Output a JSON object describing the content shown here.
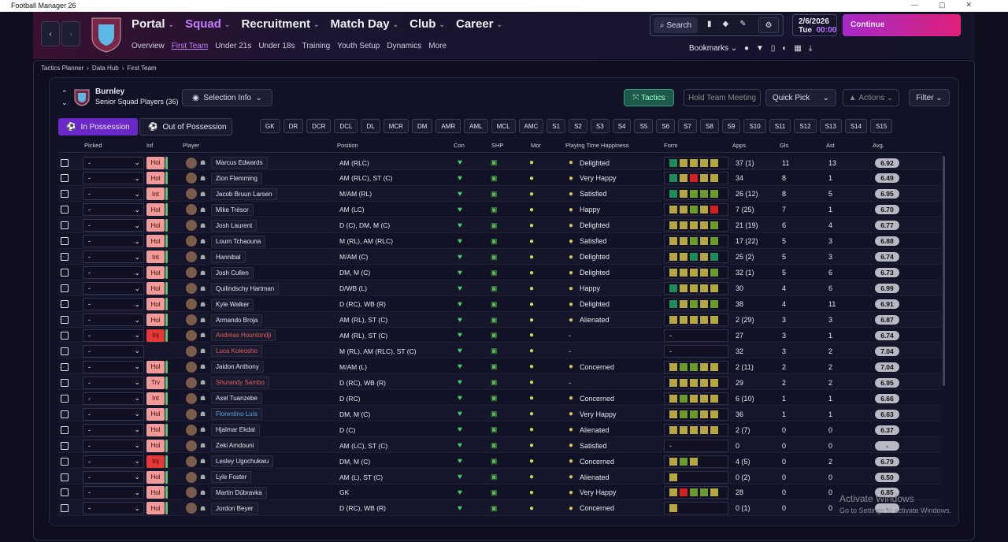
{
  "window": {
    "title": "Football Manager 26"
  },
  "nav": {
    "main": [
      "Portal",
      "Squad",
      "Recruitment",
      "Match Day",
      "Club",
      "Career"
    ],
    "sub": [
      "Overview",
      "First Team",
      "Under 21s",
      "Under 18s",
      "Training",
      "Youth Setup",
      "Dynamics",
      "More"
    ],
    "search": "Search",
    "date": "2/6/2026",
    "day": "Tue",
    "time": "00:00",
    "continue": "Continue",
    "bookmarks": "Bookmarks"
  },
  "breadcrumb": [
    "Tactics Planner",
    "Data Hub",
    "First Team"
  ],
  "squad": {
    "club": "Burnley",
    "subtitle": "Senior Squad Players (36)",
    "selection_info": "Selection Info",
    "tactics": "Tactics",
    "meeting": "Hold Team Meeting",
    "quick_pick": "Quick Pick",
    "actions": "Actions",
    "filter": "Filter",
    "tabs": [
      "In Possession",
      "Out of Possession"
    ],
    "positions": [
      "GK",
      "DR",
      "DCR",
      "DCL",
      "DL",
      "MCR",
      "DM",
      "AMR",
      "AML",
      "MCL",
      "AMC",
      "S1",
      "S2",
      "S3",
      "S4",
      "S5",
      "S6",
      "S7",
      "S8",
      "S9",
      "S10",
      "S11",
      "S12",
      "S13",
      "S14",
      "S15"
    ]
  },
  "table": {
    "columns": [
      "Picked",
      "Inf",
      "Player",
      "Position",
      "Con",
      "SHP",
      "Mor",
      "Playing Time Happiness",
      "Form",
      "Apps",
      "Gls",
      "Ast",
      "Avg."
    ],
    "rows": [
      {
        "picked": "-",
        "inf": "Hol",
        "name": "Marcus Edwards",
        "position": "AM (RLC)",
        "happiness": "Delighted",
        "form": [
          "#1f8a5a",
          "#b5a642",
          "#b5a642",
          "#b5a642",
          "#b5a642"
        ],
        "apps": "37 (1)",
        "gls": 11,
        "ast": 13,
        "avg": "6.92"
      },
      {
        "picked": "-",
        "inf": "Hol",
        "name": "Zion Flemming",
        "position": "AM (RLC), ST (C)",
        "happiness": "Very Happy",
        "form": [
          "#1f8a5a",
          "#b5a642",
          "#d42020",
          "#b5a642",
          "#b5a642"
        ],
        "apps": "34",
        "gls": 8,
        "ast": 1,
        "avg": "6.49"
      },
      {
        "picked": "-",
        "inf": "Int",
        "name": "Jacob Bruun Larsen",
        "position": "M/AM (RL)",
        "happiness": "Satisfied",
        "form": [
          "#1f8a5a",
          "#b5a642",
          "#6a9a2a",
          "#6a9a2a",
          "#6a9a2a"
        ],
        "apps": "26 (12)",
        "gls": 8,
        "ast": 5,
        "avg": "6.95"
      },
      {
        "picked": "-",
        "inf": "Hol",
        "name": "Mike Trésor",
        "position": "AM (LC)",
        "happiness": "Happy",
        "form": [
          "#b5a642",
          "#b5a642",
          "#6a9a2a",
          "#b5a642",
          "#d42020"
        ],
        "apps": "7 (25)",
        "gls": 7,
        "ast": 1,
        "avg": "6.70"
      },
      {
        "picked": "-",
        "inf": "Hol",
        "name": "Josh Laurent",
        "position": "D (C), DM, M (C)",
        "happiness": "Delighted",
        "form": [
          "#b5a642",
          "#b5a642",
          "#b5a642",
          "#b5a642",
          "#6a9a2a"
        ],
        "apps": "21 (19)",
        "gls": 6,
        "ast": 4,
        "avg": "6.77"
      },
      {
        "picked": "-",
        "inf": "Hol",
        "name": "Lourn Tchaouna",
        "position": "M (RL), AM (RLC)",
        "happiness": "Satisfied",
        "form": [
          "#b5a642",
          "#b5a642",
          "#6a9a2a",
          "#b5a642",
          "#6a9a2a"
        ],
        "apps": "17 (22)",
        "gls": 5,
        "ast": 3,
        "avg": "6.88"
      },
      {
        "picked": "-",
        "inf": "Int",
        "name": "Hannibal",
        "position": "M/AM (C)",
        "happiness": "Delighted",
        "form": [
          "#b5a642",
          "#b5a642",
          "#1f8a5a",
          "#b5a642",
          "#1f8a5a"
        ],
        "apps": "25 (2)",
        "gls": 5,
        "ast": 3,
        "avg": "6.74"
      },
      {
        "picked": "-",
        "inf": "Hol",
        "name": "Josh Cullen",
        "position": "DM, M (C)",
        "happiness": "Delighted",
        "form": [
          "#b5a642",
          "#b5a642",
          "#b5a642",
          "#b5a642",
          "#6a9a2a"
        ],
        "apps": "32 (1)",
        "gls": 5,
        "ast": 6,
        "avg": "6.73"
      },
      {
        "picked": "-",
        "inf": "Hol",
        "name": "Quilindschy Hartman",
        "position": "D/WB (L)",
        "happiness": "Happy",
        "form": [
          "#1f8a5a",
          "#b5a642",
          "#b5a642",
          "#b5a642",
          "#b5a642"
        ],
        "apps": "30",
        "gls": 4,
        "ast": 6,
        "avg": "6.99"
      },
      {
        "picked": "-",
        "inf": "Hol",
        "name": "Kyle Walker",
        "position": "D (RC), WB (R)",
        "happiness": "Delighted",
        "form": [
          "#1f8a5a",
          "#b5a642",
          "#6a9a2a",
          "#b5a642",
          "#6a9a2a"
        ],
        "apps": "38",
        "gls": 4,
        "ast": 11,
        "avg": "6.91"
      },
      {
        "picked": "-",
        "inf": "Hol",
        "name": "Armando Broja",
        "position": "AM (RL), ST (C)",
        "happiness": "Alienated",
        "form": [
          "#b5a642",
          "#b5a642",
          "#b5a642",
          "#b5a642",
          "#b5a642"
        ],
        "apps": "2 (29)",
        "gls": 3,
        "ast": 3,
        "avg": "6.87"
      },
      {
        "picked": "-",
        "inf": "Inj",
        "name": "Andréas Hountondji",
        "name_color": "#e0605a",
        "position": "AM (RL), ST (C)",
        "happiness": "-",
        "form": "-",
        "apps": "27",
        "gls": 3,
        "ast": 1,
        "avg": "6.74"
      },
      {
        "picked": "-",
        "name": "Luca Koleosho",
        "name_color": "#e0605a",
        "position": "M (RL), AM (RLC), ST (C)",
        "happiness": "-",
        "form": "-",
        "apps": "32",
        "gls": 3,
        "ast": 2,
        "avg": "7.04"
      },
      {
        "picked": "-",
        "inf": "Hol",
        "name": "Jaidon Anthony",
        "position": "M/AM (L)",
        "happiness": "Concerned",
        "form": [
          "#b5a642",
          "#6a9a2a",
          "#6a9a2a",
          "#b5a642",
          "#b5a642"
        ],
        "apps": "2 (11)",
        "gls": 2,
        "ast": 2,
        "avg": "7.04"
      },
      {
        "picked": "-",
        "inf": "Trv",
        "name": "Shurandy Sambo",
        "name_color": "#e0605a",
        "position": "D (RC), WB (R)",
        "happiness": "-",
        "form": [
          "#b5a642",
          "#b5a642",
          "#b5a642",
          "#b5a642",
          "#b5a642"
        ],
        "apps": "29",
        "gls": 2,
        "ast": 2,
        "avg": "6.95"
      },
      {
        "picked": "-",
        "inf": "Int",
        "name": "Axel Tuanzebe",
        "position": "D (RC)",
        "happiness": "Concerned",
        "form": [
          "#b5a642",
          "#6a9a2a",
          "#b5a642",
          "#b5a642",
          "#b5a642"
        ],
        "apps": "6 (10)",
        "gls": 1,
        "ast": 1,
        "avg": "6.66"
      },
      {
        "picked": "-",
        "inf": "Hol",
        "name": "Florentino Luís",
        "name_color": "#5aa8e0",
        "position": "DM, M (C)",
        "happiness": "Very Happy",
        "form": [
          "#b5a642",
          "#6a9a2a",
          "#6a9a2a",
          "#b5a642",
          "#b5a642"
        ],
        "apps": "36",
        "gls": 1,
        "ast": 1,
        "avg": "6.63"
      },
      {
        "picked": "-",
        "inf": "Hol",
        "name": "Hjalmar Ekdal",
        "position": "D (C)",
        "happiness": "Alienated",
        "form": [
          "#b5a642",
          "#b5a642",
          "#b5a642",
          "#b5a642",
          "#b5a642"
        ],
        "apps": "2 (7)",
        "gls": 0,
        "ast": 0,
        "avg": "6.37"
      },
      {
        "picked": "-",
        "inf": "Hol",
        "name": "Zeki Amdouni",
        "position": "AM (LC), ST (C)",
        "happiness": "Satisfied",
        "form": "-",
        "apps": "0",
        "gls": 0,
        "ast": 0,
        "avg": "-"
      },
      {
        "picked": "-",
        "inf": "Inj",
        "name": "Lesley Ugochukwu",
        "position": "DM, M (C)",
        "happiness": "Concerned",
        "form": [
          "#b5a642",
          "#6a9a2a",
          "#b5a642"
        ],
        "apps": "4 (5)",
        "gls": 0,
        "ast": 2,
        "avg": "6.79"
      },
      {
        "picked": "-",
        "inf": "Hol",
        "name": "Lyle Foster",
        "position": "AM (L), ST (C)",
        "happiness": "Alienated",
        "form": [
          "#b5a642"
        ],
        "apps": "0 (2)",
        "gls": 0,
        "ast": 0,
        "avg": "6.50"
      },
      {
        "picked": "-",
        "inf": "Hol",
        "name": "Martin Dúbravka",
        "position": "GK",
        "happiness": "Very Happy",
        "form": [
          "#b5a642",
          "#d42020",
          "#6a9a2a",
          "#6a9a2a",
          "#b5a642"
        ],
        "apps": "28",
        "gls": 0,
        "ast": 0,
        "avg": "6.85"
      },
      {
        "picked": "-",
        "inf": "Hol",
        "name": "Jordon Beyer",
        "position": "D (RC), WB (R)",
        "happiness": "Concerned",
        "form": [
          "#b5a642"
        ],
        "apps": "0 (1)",
        "gls": 0,
        "ast": 0,
        "avg": "-"
      }
    ]
  },
  "watermark": {
    "title": "Activate Windows",
    "text": "Go to Settings to activate Windows."
  }
}
